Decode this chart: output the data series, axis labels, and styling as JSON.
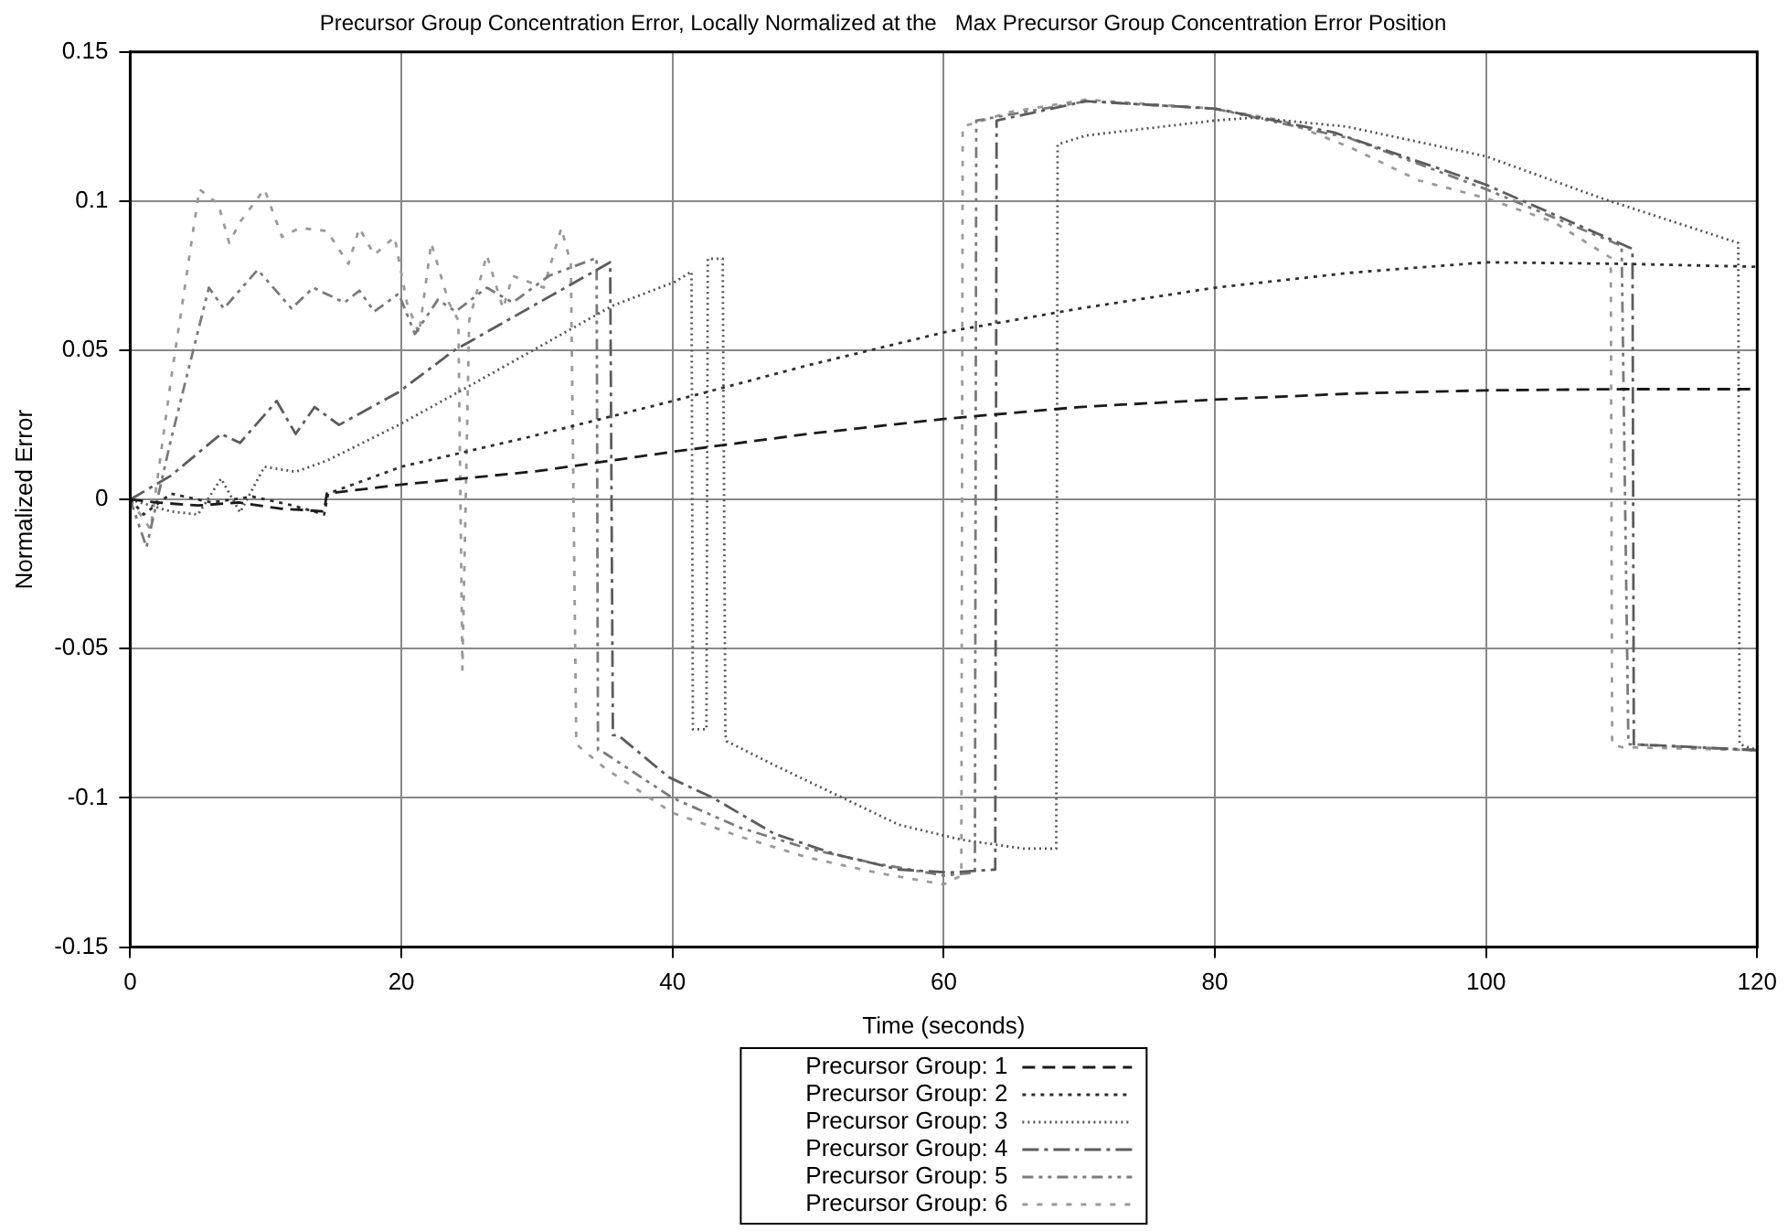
{
  "chart_data": {
    "type": "line",
    "title": "Precursor Group Concentration Error, Locally Normalized at the   Max Precursor Group Concentration Error Position",
    "xlabel": "Time (seconds)",
    "ylabel": "Normalized Error",
    "xlim": [
      0,
      120
    ],
    "ylim": [
      -0.15,
      0.15
    ],
    "xticks": [
      0,
      20,
      40,
      60,
      80,
      100,
      120
    ],
    "yticks": [
      -0.15,
      -0.1,
      -0.05,
      0,
      0.05,
      0.1,
      0.15
    ],
    "grid": true,
    "legend": "bottom",
    "marker": "none",
    "series": [
      {
        "name": "Precursor Group: 1",
        "color": "#1a1a1a",
        "line_style": "dashed",
        "x": [
          0,
          2,
          5,
          8,
          11,
          14.3,
          14.5,
          20,
          30,
          40,
          50,
          60,
          70,
          80,
          90,
          100,
          110,
          120
        ],
        "values": [
          0,
          -0.001,
          -0.002,
          -0.001,
          -0.003,
          -0.004,
          0.002,
          0.005,
          0.0095,
          0.016,
          0.022,
          0.027,
          0.031,
          0.0335,
          0.0355,
          0.0366,
          0.037,
          0.037
        ]
      },
      {
        "name": "Precursor Group: 2",
        "color": "#2e2e2e",
        "line_style": "dotted",
        "x": [
          0,
          1,
          3,
          6,
          9,
          12,
          14.3,
          14.6,
          20,
          29,
          40,
          50,
          60,
          70,
          80,
          90,
          100,
          110,
          120
        ],
        "values": [
          0,
          -0.005,
          0.002,
          -0.001,
          0.001,
          -0.002,
          -0.005,
          0.002,
          0.011,
          0.0205,
          0.033,
          0.045,
          0.056,
          0.064,
          0.071,
          0.076,
          0.0795,
          0.079,
          0.078
        ]
      },
      {
        "name": "Precursor Group: 3",
        "color": "#555555",
        "line_style": "dotted",
        "x": [
          0,
          3,
          5,
          6.7,
          8.1,
          9.9,
          12.2,
          14.5,
          19.8,
          24.6,
          35.6,
          40.2,
          41.4,
          41.5,
          42.5,
          42.6,
          43.7,
          43.9,
          44,
          47.5,
          52.1,
          56.7,
          61.3,
          65.9,
          68.3,
          68.4,
          70.5,
          80,
          82.8,
          89.7,
          100,
          108.5,
          118.6,
          118.7,
          120
        ],
        "values": [
          0,
          -0.004,
          -0.005,
          0.007,
          -0.0043,
          0.011,
          0.0093,
          0.013,
          0.025,
          0.037,
          0.065,
          0.073,
          0.0764,
          -0.077,
          -0.077,
          0.0807,
          0.0807,
          -0.079,
          -0.081,
          -0.089,
          -0.099,
          -0.109,
          -0.114,
          -0.117,
          -0.117,
          0.119,
          0.122,
          0.127,
          0.128,
          0.125,
          0.115,
          0.101,
          0.086,
          -0.082,
          -0.084
        ]
      },
      {
        "name": "Precursor Group: 4",
        "color": "#5c5c5c",
        "line_style": "dashed",
        "x": [
          0,
          3,
          6.7,
          8.1,
          10.8,
          12.2,
          13.6,
          15.4,
          19.8,
          23.9,
          35.4,
          35.6,
          36,
          39.7,
          43,
          47.5,
          52.1,
          56.7,
          60.4,
          63.8,
          63.9,
          70.5,
          80,
          88.8,
          100,
          110.8,
          110.9,
          120
        ],
        "values": [
          0,
          0.008,
          0.022,
          0.019,
          0.033,
          0.022,
          0.031,
          0.025,
          0.036,
          0.05,
          0.0795,
          -0.079,
          -0.079,
          -0.093,
          -0.1,
          -0.112,
          -0.119,
          -0.124,
          -0.125,
          -0.124,
          0.127,
          0.1335,
          0.131,
          0.123,
          0.1055,
          0.084,
          -0.082,
          -0.084
        ]
      },
      {
        "name": "Precursor Group: 5",
        "color": "#7a7a7a",
        "line_style": "dashed",
        "x": [
          0,
          1.2,
          3,
          5.8,
          6.9,
          9.4,
          11.9,
          13.5,
          15.8,
          16.9,
          18,
          19.8,
          21,
          22.7,
          24,
          26.3,
          28.2,
          30.9,
          34.4,
          34.5,
          35,
          40,
          45,
          50,
          55,
          60,
          62.3,
          62.4,
          70.5,
          80,
          90,
          100,
          110,
          110.5,
          120
        ],
        "values": [
          0,
          -0.016,
          0.02,
          0.071,
          0.064,
          0.077,
          0.064,
          0.071,
          0.066,
          0.07,
          0.063,
          0.069,
          0.0555,
          0.067,
          0.063,
          0.071,
          0.066,
          0.075,
          0.081,
          -0.084,
          -0.085,
          -0.1,
          -0.11,
          -0.117,
          -0.122,
          -0.126,
          -0.125,
          0.127,
          0.1335,
          0.131,
          0.121,
          0.104,
          0.085,
          -0.082,
          -0.084
        ]
      },
      {
        "name": "Precursor Group: 6",
        "color": "#9a9a9a",
        "line_style": "dashed",
        "x": [
          0,
          1.5,
          3,
          5.1,
          6.5,
          7.3,
          8.1,
          9.9,
          11.2,
          12.5,
          14.5,
          16.1,
          16.9,
          18,
          19.5,
          20.4,
          21.3,
          22.2,
          23.5,
          24.2,
          24.5,
          25,
          26.3,
          27.5,
          28.2,
          30.5,
          31.8,
          32.5,
          32.9,
          35,
          40,
          45,
          50,
          55,
          60,
          61.3,
          61.4,
          65,
          70.5,
          80,
          85,
          90,
          95,
          100,
          105,
          109.2,
          109.3,
          110,
          120
        ],
        "values": [
          0,
          -0.01,
          0.04,
          0.104,
          0.099,
          0.086,
          0.093,
          0.104,
          0.088,
          0.091,
          0.09,
          0.079,
          0.091,
          0.082,
          0.088,
          0.066,
          0.0555,
          0.086,
          0.066,
          0.06,
          -0.057,
          0.06,
          0.082,
          0.064,
          0.075,
          0.071,
          0.091,
          0.079,
          -0.082,
          -0.09,
          -0.105,
          -0.113,
          -0.12,
          -0.125,
          -0.129,
          -0.126,
          0.125,
          0.13,
          0.134,
          0.131,
          0.127,
          0.118,
          0.107,
          0.101,
          0.093,
          0.081,
          -0.082,
          -0.083,
          -0.084
        ]
      }
    ]
  }
}
